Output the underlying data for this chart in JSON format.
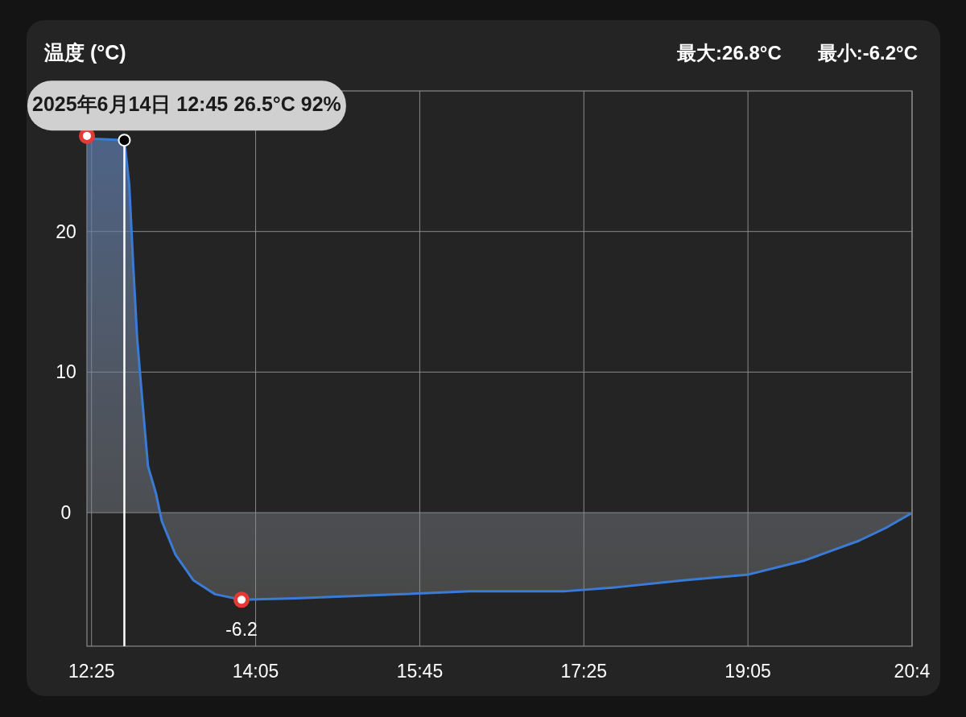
{
  "chart_data": {
    "type": "area",
    "title": "温度 (°C)",
    "annotations": [
      "最大:26.8°C",
      "最小:-6.2°C",
      {
        "text": "2025年6月14日 12:45 26.5°C 92%",
        "x": 12.75,
        "y": 26.5
      }
    ],
    "x": [
      12.37,
      12.45,
      12.75,
      12.8,
      12.84,
      12.88,
      12.92,
      12.99,
      13.07,
      13.13,
      13.27,
      13.45,
      13.67,
      13.94,
      14.49,
      15.58,
      16.26,
      17.21,
      17.76,
      18.44,
      19.09,
      19.66,
      20.21,
      20.48,
      20.73
    ],
    "series": [
      {
        "color": "#3a7bd5",
        "values": [
          26.8,
          26.6,
          26.5,
          23.3,
          17.6,
          12.4,
          9.0,
          3.3,
          1.4,
          -0.6,
          -3.0,
          -4.8,
          -5.8,
          -6.2,
          -6.1,
          -5.8,
          -5.6,
          -5.6,
          -5.3,
          -4.8,
          -4.4,
          -3.4,
          -2.0,
          -1.1,
          -0.1
        ]
      },
      {
        "type": "scatter",
        "color": "#e53935",
        "marker": "circle",
        "x": [
          12.37,
          13.94
        ],
        "values": [
          26.8,
          -6.2
        ],
        "value_labels": [
          null,
          "-6.2"
        ]
      }
    ],
    "ref_lines": [
      {
        "axis": "x",
        "value": 12.75,
        "color": "#ffffff"
      }
    ],
    "xlim": [
      12.37,
      20.75
    ],
    "ylim": [
      -9.5,
      30
    ],
    "xticks": [
      {
        "value": 12.4167,
        "label": "12:25"
      },
      {
        "value": 14.0833,
        "label": "14:05"
      },
      {
        "value": 15.75,
        "label": "15:45"
      },
      {
        "value": 17.4167,
        "label": "17:25"
      },
      {
        "value": 19.0833,
        "label": "19:05"
      },
      {
        "value": 20.75,
        "label": "20:4"
      }
    ],
    "yticks": [
      0,
      10,
      20
    ],
    "grid": true,
    "marker": "none"
  }
}
